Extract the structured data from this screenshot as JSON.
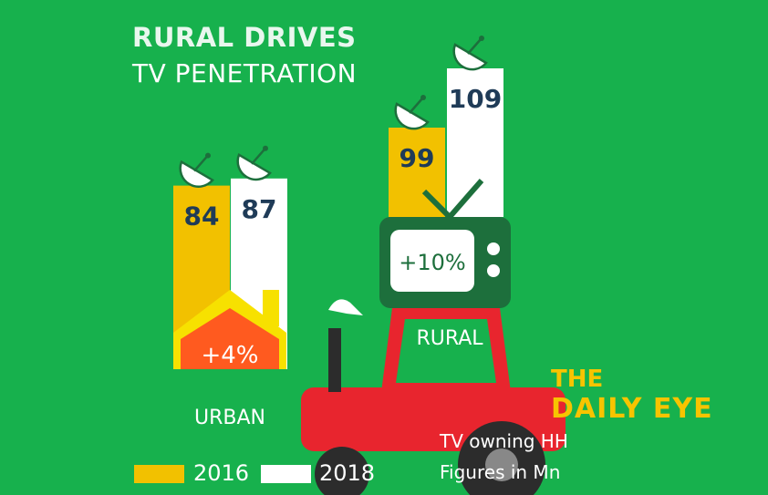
{
  "chart_data": {
    "type": "bar",
    "title": "RURAL DRIVES",
    "subtitle": "TV PENETRATION",
    "categories": [
      "URBAN",
      "RURAL"
    ],
    "series": [
      {
        "name": "2016",
        "values": [
          84,
          99
        ],
        "color": "#f2c100"
      },
      {
        "name": "2018",
        "values": [
          87,
          109
        ],
        "color": "#ffffff"
      }
    ],
    "growth_labels": [
      "+4%",
      "+10%"
    ],
    "legend": {
      "placement": "bottom-left"
    },
    "notes": [
      "TV owning HH",
      "Figures in Mn"
    ]
  },
  "brand": {
    "line1": "THE",
    "line2": "DAILY EYE"
  },
  "colors": {
    "background": "#17b14d",
    "bar_2016": "#f2c100",
    "bar_2018": "#ffffff",
    "house_roof": "#ff5a1f",
    "tv_body": "#1d6f3c",
    "tractor": "#e8252e",
    "value_text": "#1f3b57"
  },
  "icons": [
    "satellite-dish-icon",
    "house-icon",
    "tv-icon",
    "tractor-icon",
    "bird-icon"
  ]
}
